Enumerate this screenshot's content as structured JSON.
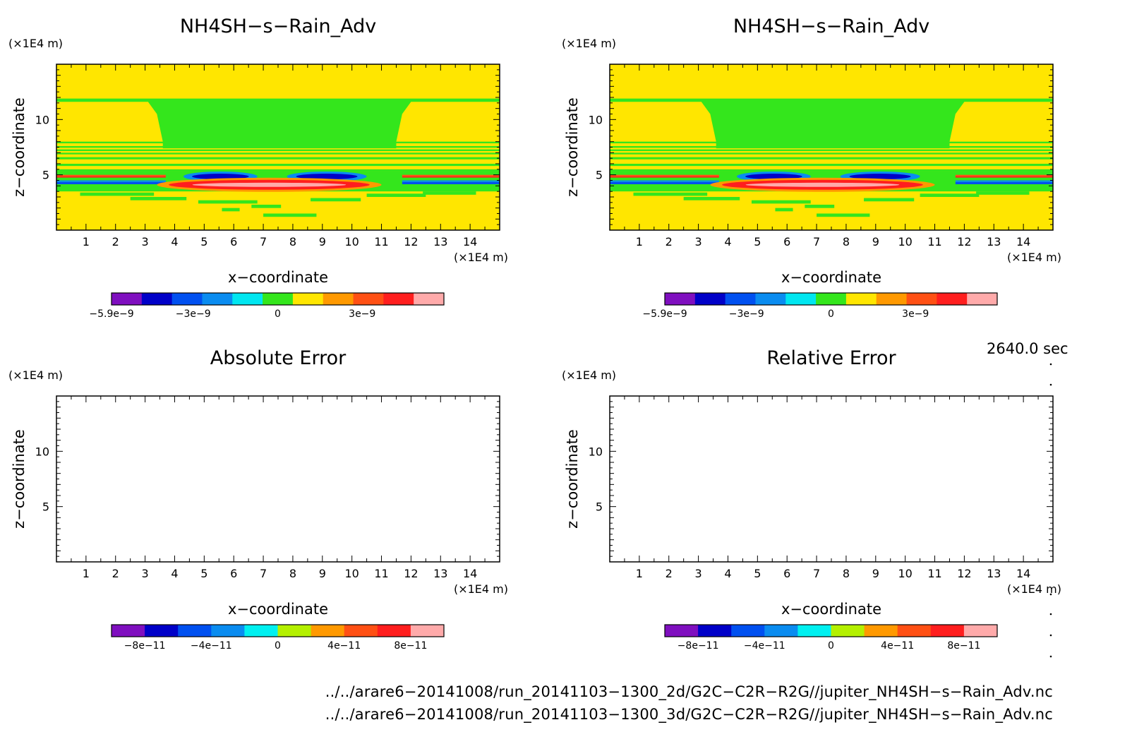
{
  "chart_data": [
    {
      "type": "heatmap",
      "title": "NH4SH−s−Rain_Adv",
      "xlabel": "x−coordinate",
      "ylabel": "z−coordinate",
      "x_unit": "(×1E4 m)",
      "y_unit": "(×1E4 m)",
      "xlim": [
        0,
        15
      ],
      "ylim": [
        0,
        15
      ],
      "x_ticks": [
        "1",
        "2",
        "3",
        "4",
        "5",
        "6",
        "7",
        "8",
        "9",
        "10",
        "11",
        "12",
        "13",
        "14"
      ],
      "y_ticks": [
        "5",
        "10"
      ],
      "colorbar": {
        "colors": [
          "#7f0fbf",
          "#0000c8",
          "#0050f0",
          "#0a8cf0",
          "#00e6f0",
          "#34e61c",
          "#ffe600",
          "#ff9900",
          "#ff5014",
          "#ff1e1e",
          "#ffaaaa"
        ],
        "tick_labels": [
          "−5.9e−9",
          "−3e−9",
          "0",
          "3e−9"
        ],
        "tick_positions": [
          -5.9e-09,
          -3e-09,
          0,
          3e-09
        ],
        "range": [
          -5.9e-09,
          5.9e-09
        ]
      },
      "field_description_values": {
        "background": 0,
        "cloud_layer_z": [
          7.5,
          11.7
        ],
        "main_band_z": [
          3.5,
          5.2
        ],
        "peak_positive": 5.9e-09,
        "peak_negative": -5.9e-09
      }
    },
    {
      "type": "heatmap",
      "title": "NH4SH−s−Rain_Adv",
      "xlabel": "x−coordinate",
      "ylabel": "z−coordinate",
      "x_unit": "(×1E4 m)",
      "y_unit": "(×1E4 m)",
      "xlim": [
        0,
        15
      ],
      "ylim": [
        0,
        15
      ],
      "x_ticks": [
        "1",
        "2",
        "3",
        "4",
        "5",
        "6",
        "7",
        "8",
        "9",
        "10",
        "11",
        "12",
        "13",
        "14"
      ],
      "y_ticks": [
        "5",
        "10"
      ],
      "colorbar": {
        "colors": [
          "#7f0fbf",
          "#0000c8",
          "#0050f0",
          "#0a8cf0",
          "#00e6f0",
          "#34e61c",
          "#ffe600",
          "#ff9900",
          "#ff5014",
          "#ff1e1e",
          "#ffaaaa"
        ],
        "tick_labels": [
          "−5.9e−9",
          "−3e−9",
          "0",
          "3e−9"
        ],
        "tick_positions": [
          -5.9e-09,
          -3e-09,
          0,
          3e-09
        ],
        "range": [
          -5.9e-09,
          5.9e-09
        ]
      }
    },
    {
      "type": "heatmap",
      "title": "Absolute Error",
      "xlabel": "x−coordinate",
      "ylabel": "z−coordinate",
      "x_unit": "(×1E4 m)",
      "y_unit": "(×1E4 m)",
      "xlim": [
        0,
        15
      ],
      "ylim": [
        0,
        15
      ],
      "x_ticks": [
        "1",
        "2",
        "3",
        "4",
        "5",
        "6",
        "7",
        "8",
        "9",
        "10",
        "11",
        "12",
        "13",
        "14"
      ],
      "y_ticks": [
        "5",
        "10"
      ],
      "empty": true,
      "colorbar": {
        "colors": [
          "#7f0fbf",
          "#0000c8",
          "#0050f0",
          "#0a8cf0",
          "#00f0f0",
          "#b4f000",
          "#ff9900",
          "#ff5014",
          "#ff1e1e",
          "#ffaaaa"
        ],
        "tick_labels": [
          "−8e−11",
          "−4e−11",
          "0",
          "4e−11",
          "8e−11"
        ],
        "tick_positions": [
          -8e-11,
          -4e-11,
          0,
          4e-11,
          8e-11
        ],
        "range": [
          -1e-10,
          1e-10
        ]
      }
    },
    {
      "type": "heatmap",
      "title": "Relative Error",
      "xlabel": "x−coordinate",
      "ylabel": "z−coordinate",
      "x_unit": "(×1E4 m)",
      "y_unit": "(×1E4 m)",
      "xlim": [
        0,
        15
      ],
      "ylim": [
        0,
        15
      ],
      "x_ticks": [
        "1",
        "2",
        "3",
        "4",
        "5",
        "6",
        "7",
        "8",
        "9",
        "10",
        "11",
        "12",
        "13",
        "14"
      ],
      "y_ticks": [
        "5",
        "10"
      ],
      "empty": true,
      "colorbar": {
        "colors": [
          "#7f0fbf",
          "#0000c8",
          "#0050f0",
          "#0a8cf0",
          "#00f0f0",
          "#b4f000",
          "#ff9900",
          "#ff5014",
          "#ff1e1e",
          "#ffaaaa"
        ],
        "tick_labels": [
          "−8e−11",
          "−4e−11",
          "0",
          "4e−11",
          "8e−11"
        ],
        "tick_positions": [
          -8e-11,
          -4e-11,
          0,
          4e-11,
          8e-11
        ],
        "range": [
          -1e-10,
          1e-10
        ]
      }
    }
  ],
  "time_label": "2640.0 sec",
  "footer": {
    "file_2d": "../../arare6−20141008/run_20141103−1300_2d/G2C−C2R−R2G//jupiter_NH4SH−s−Rain_Adv.nc",
    "file_3d": "../../arare6−20141008/run_20141103−1300_3d/G2C−C2R−R2G//jupiter_NH4SH−s−Rain_Adv.nc"
  }
}
